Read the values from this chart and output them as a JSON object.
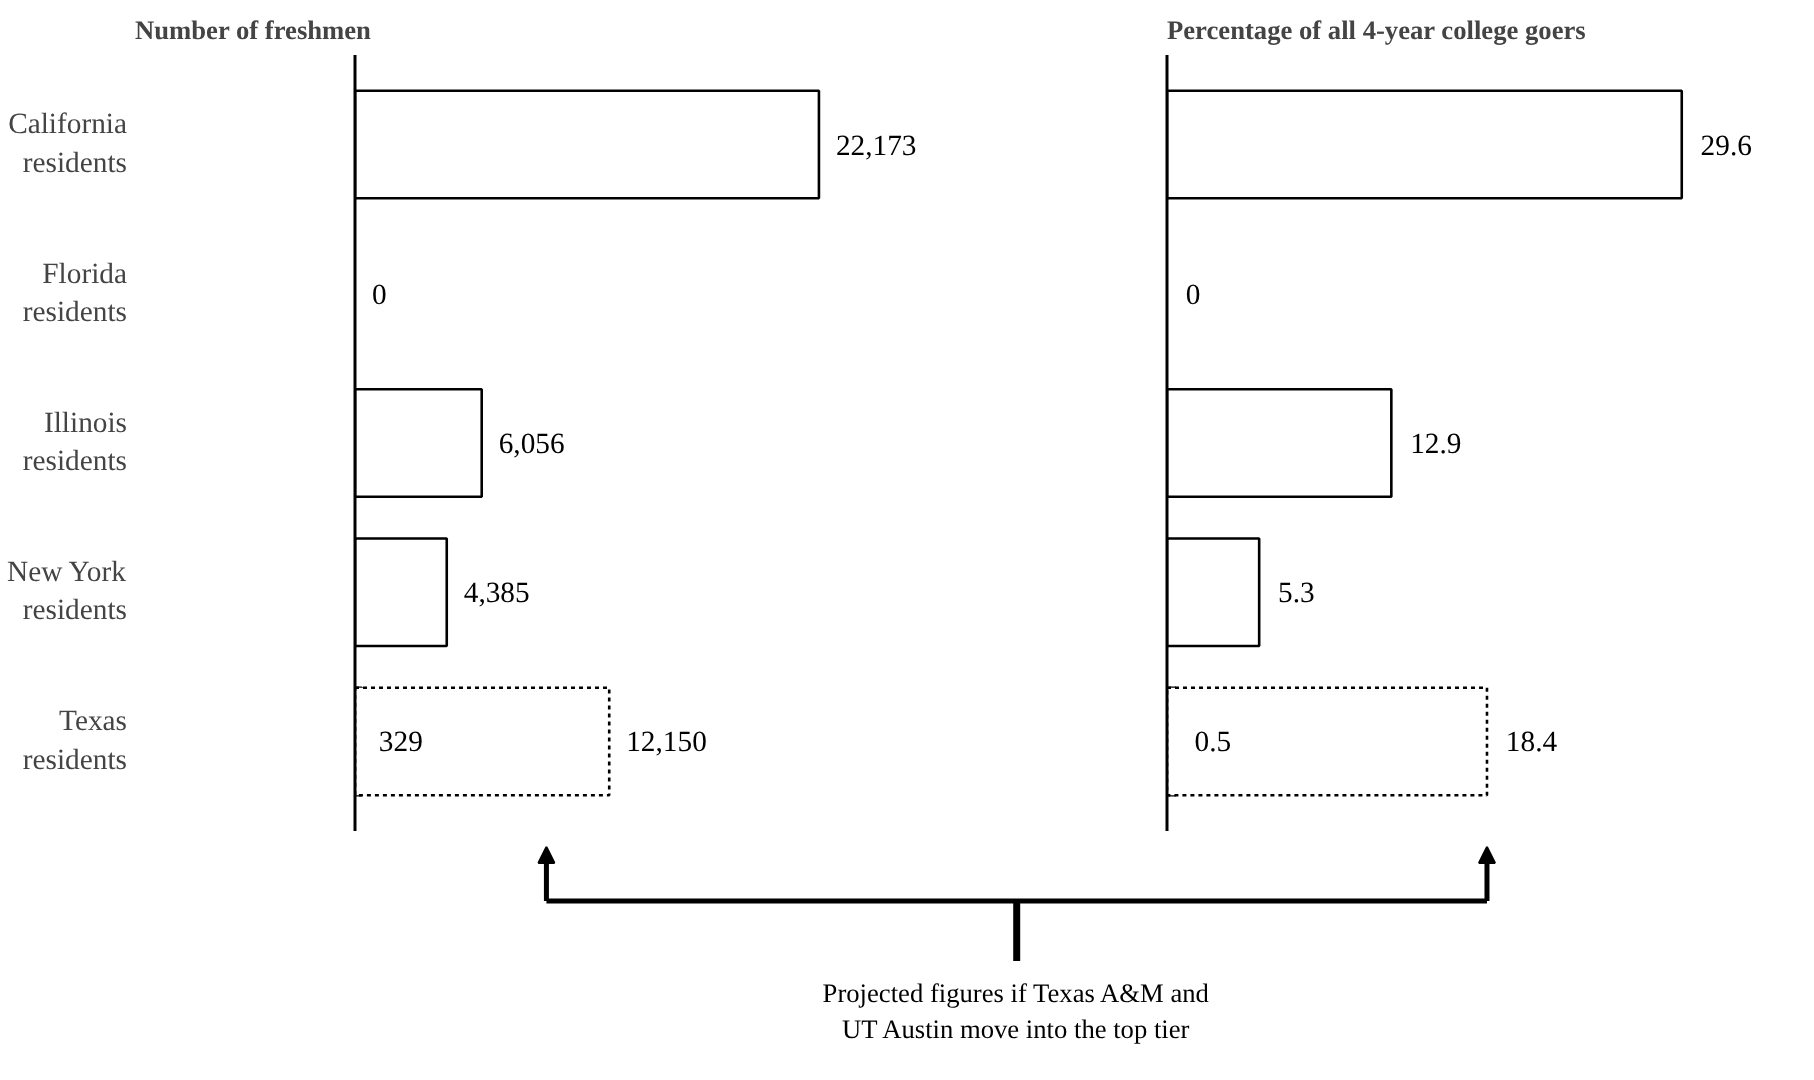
{
  "chart_data": [
    {
      "type": "bar",
      "orientation": "horizontal",
      "title": "Number of freshmen",
      "categories": [
        "California residents",
        "Florida residents",
        "Illinois residents",
        "New York residents",
        "Texas residents"
      ],
      "series": [
        {
          "color": "#ffffff",
          "values": [
            22173,
            0,
            6056,
            4385,
            329
          ],
          "value_labels": [
            "22,173",
            "0",
            "6,056",
            "4,385",
            "329"
          ]
        },
        {
          "color": "#ffffff",
          "line_style": "dotted",
          "values": [
            null,
            null,
            null,
            null,
            12150
          ],
          "value_labels": [
            null,
            null,
            null,
            null,
            "12,150"
          ]
        }
      ],
      "grid": false,
      "tick_labels": "y",
      "annotations": [
        "Projected figures if Texas A&M and UT Austin move into the top tier"
      ]
    },
    {
      "type": "bar",
      "orientation": "horizontal",
      "title": "Percentage of all 4-year college goers",
      "categories": [
        null,
        null,
        null,
        null,
        null
      ],
      "series": [
        {
          "color": "#ffffff",
          "values": [
            29.6,
            0,
            12.9,
            5.3,
            0.5
          ],
          "value_labels": [
            "29.6",
            "0",
            "12.9",
            "5.3",
            "0.5"
          ]
        },
        {
          "color": "#ffffff",
          "line_style": "dotted",
          "values": [
            null,
            null,
            null,
            null,
            18.4
          ],
          "value_labels": [
            null,
            null,
            null,
            null,
            "18.4"
          ]
        }
      ],
      "grid": false,
      "tick_labels": false
    }
  ]
}
